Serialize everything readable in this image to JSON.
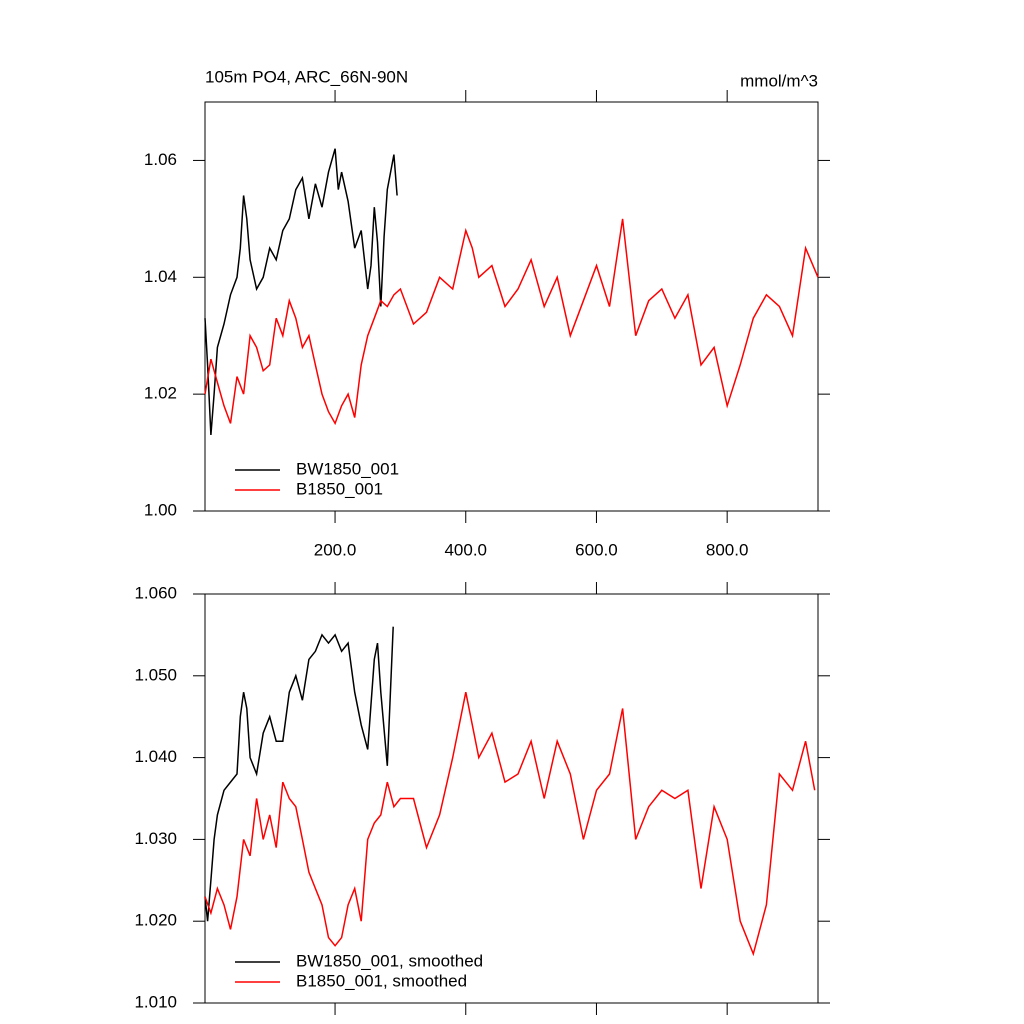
{
  "chart_data": [
    {
      "type": "line",
      "title": "105m PO4, ARC_66N-90N",
      "units": "mmol/m^3",
      "xlim": [
        1,
        939
      ],
      "xticks": [
        {
          "value": 200,
          "label": "200.0"
        },
        {
          "value": 400,
          "label": "400.0"
        },
        {
          "value": 600,
          "label": "600.0"
        },
        {
          "value": 800,
          "label": "800.0"
        }
      ],
      "ylim": [
        1.0,
        1.07
      ],
      "yticks": [
        {
          "value": 1.0,
          "label": "1.00"
        },
        1.02,
        1.04,
        1.06
      ],
      "legend": "lower left",
      "series": [
        {
          "name": "BW1850_001",
          "color": "#000000",
          "x": [
            1,
            5,
            10,
            15,
            20,
            30,
            40,
            50,
            55,
            60,
            65,
            70,
            80,
            90,
            100,
            110,
            120,
            130,
            140,
            150,
            160,
            170,
            180,
            190,
            200,
            205,
            210,
            220,
            230,
            240,
            250,
            255,
            260,
            265,
            270,
            275,
            280,
            285,
            290,
            295
          ],
          "values": [
            1.033,
            1.025,
            1.013,
            1.02,
            1.028,
            1.032,
            1.037,
            1.04,
            1.045,
            1.054,
            1.05,
            1.043,
            1.038,
            1.04,
            1.045,
            1.043,
            1.048,
            1.05,
            1.055,
            1.057,
            1.05,
            1.056,
            1.052,
            1.058,
            1.062,
            1.055,
            1.058,
            1.053,
            1.045,
            1.048,
            1.038,
            1.042,
            1.052,
            1.046,
            1.035,
            1.047,
            1.055,
            1.058,
            1.061,
            1.054
          ]
        },
        {
          "name": "B1850_001",
          "color": "#ff0000",
          "x": [
            1,
            10,
            20,
            30,
            40,
            50,
            60,
            70,
            80,
            90,
            100,
            110,
            120,
            130,
            140,
            150,
            160,
            170,
            180,
            190,
            200,
            210,
            220,
            230,
            240,
            250,
            260,
            270,
            280,
            290,
            300,
            320,
            340,
            360,
            380,
            400,
            410,
            420,
            440,
            460,
            480,
            500,
            520,
            540,
            560,
            580,
            600,
            620,
            640,
            660,
            680,
            700,
            720,
            740,
            760,
            780,
            800,
            820,
            840,
            860,
            880,
            900,
            920,
            939
          ],
          "values": [
            1.02,
            1.026,
            1.022,
            1.018,
            1.015,
            1.023,
            1.02,
            1.03,
            1.028,
            1.024,
            1.025,
            1.033,
            1.03,
            1.036,
            1.033,
            1.028,
            1.03,
            1.025,
            1.02,
            1.017,
            1.015,
            1.018,
            1.02,
            1.016,
            1.025,
            1.03,
            1.033,
            1.036,
            1.035,
            1.037,
            1.038,
            1.032,
            1.034,
            1.04,
            1.038,
            1.048,
            1.045,
            1.04,
            1.042,
            1.035,
            1.038,
            1.043,
            1.035,
            1.04,
            1.03,
            1.036,
            1.042,
            1.035,
            1.05,
            1.03,
            1.036,
            1.038,
            1.033,
            1.037,
            1.025,
            1.028,
            1.018,
            1.025,
            1.033,
            1.037,
            1.035,
            1.03,
            1.045,
            1.04
          ]
        }
      ]
    },
    {
      "type": "line",
      "xlim": [
        1,
        939
      ],
      "xticks": [
        200,
        400,
        600,
        800
      ],
      "ylim": [
        1.01,
        1.06
      ],
      "yticks": [
        {
          "value": 1.01,
          "label": "1.010"
        },
        {
          "value": 1.02,
          "label": "1.020"
        },
        {
          "value": 1.03,
          "label": "1.030"
        },
        {
          "value": 1.04,
          "label": "1.040"
        },
        {
          "value": 1.05,
          "label": "1.050"
        },
        {
          "value": 1.06,
          "label": "1.060"
        }
      ],
      "legend": "lower left",
      "series": [
        {
          "name": "BW1850_001, smoothed",
          "color": "#000000",
          "x": [
            1,
            5,
            10,
            15,
            20,
            30,
            40,
            50,
            55,
            60,
            65,
            70,
            80,
            90,
            100,
            110,
            120,
            130,
            140,
            150,
            160,
            170,
            180,
            190,
            200,
            210,
            220,
            230,
            240,
            250,
            260,
            265,
            270,
            280,
            289
          ],
          "values": [
            1.023,
            1.02,
            1.025,
            1.03,
            1.033,
            1.036,
            1.037,
            1.038,
            1.045,
            1.048,
            1.046,
            1.04,
            1.038,
            1.043,
            1.045,
            1.042,
            1.042,
            1.048,
            1.05,
            1.047,
            1.052,
            1.053,
            1.055,
            1.054,
            1.055,
            1.053,
            1.054,
            1.048,
            1.044,
            1.041,
            1.052,
            1.054,
            1.048,
            1.039,
            1.056
          ]
        },
        {
          "name": "B1850_001, smoothed",
          "color": "#ff0000",
          "x": [
            1,
            10,
            20,
            30,
            40,
            50,
            60,
            70,
            80,
            90,
            100,
            110,
            120,
            130,
            140,
            150,
            160,
            170,
            180,
            190,
            200,
            210,
            220,
            230,
            240,
            250,
            260,
            270,
            280,
            290,
            300,
            320,
            340,
            360,
            380,
            400,
            420,
            440,
            460,
            480,
            500,
            520,
            540,
            560,
            580,
            600,
            620,
            640,
            660,
            680,
            700,
            720,
            740,
            760,
            780,
            800,
            820,
            840,
            860,
            880,
            900,
            920,
            934
          ],
          "values": [
            1.023,
            1.021,
            1.024,
            1.022,
            1.019,
            1.023,
            1.03,
            1.028,
            1.035,
            1.03,
            1.033,
            1.029,
            1.037,
            1.035,
            1.034,
            1.03,
            1.026,
            1.024,
            1.022,
            1.018,
            1.017,
            1.018,
            1.022,
            1.024,
            1.02,
            1.03,
            1.032,
            1.033,
            1.037,
            1.034,
            1.035,
            1.035,
            1.029,
            1.033,
            1.04,
            1.048,
            1.04,
            1.043,
            1.037,
            1.038,
            1.042,
            1.035,
            1.042,
            1.038,
            1.03,
            1.036,
            1.038,
            1.046,
            1.03,
            1.034,
            1.036,
            1.035,
            1.036,
            1.024,
            1.034,
            1.03,
            1.02,
            1.016,
            1.022,
            1.038,
            1.036,
            1.042,
            1.036
          ]
        }
      ]
    }
  ]
}
